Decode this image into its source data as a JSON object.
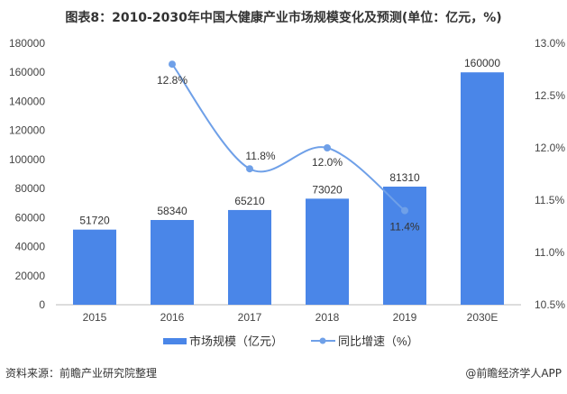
{
  "title": "图表8：2010-2030年中国大健康产业市场规模变化及预测(单位：亿元，%)",
  "source": "资料来源：前瞻产业研究院整理",
  "brand": "@前瞻经济学人APP",
  "chart_data": {
    "type": "bar+line",
    "categories": [
      "2015",
      "2016",
      "2017",
      "2018",
      "2019",
      "2030E"
    ],
    "series": [
      {
        "name": "市场规模（亿元）",
        "type": "bar",
        "axis": "left",
        "color": "#4a86e8",
        "values": [
          51720,
          58340,
          65210,
          73020,
          81310,
          160000
        ],
        "labels": [
          "51720",
          "58340",
          "65210",
          "73020",
          "81310",
          "160000"
        ]
      },
      {
        "name": "同比增速（%）",
        "type": "line",
        "axis": "right",
        "color": "#6fa0e8",
        "values": [
          null,
          12.8,
          11.8,
          12.0,
          11.4,
          null
        ],
        "labels": [
          "",
          "12.8%",
          "11.8%",
          "12.0%",
          "11.4%",
          ""
        ]
      }
    ],
    "left_axis": {
      "min": 0,
      "max": 180000,
      "ticks": [
        "0",
        "20000",
        "40000",
        "60000",
        "80000",
        "100000",
        "120000",
        "140000",
        "160000",
        "180000"
      ]
    },
    "right_axis": {
      "min": 10.5,
      "max": 13.0,
      "ticks": [
        "10.5%",
        "11.0%",
        "11.5%",
        "12.0%",
        "12.5%",
        "13.0%"
      ]
    },
    "grid": false,
    "legend": "bottom"
  }
}
